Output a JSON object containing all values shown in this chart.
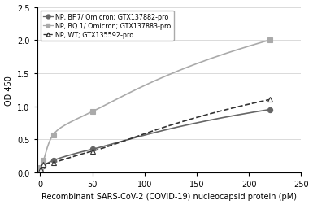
{
  "series": [
    {
      "label": "NP, BF.7/ Omicron; GTX137882-pro",
      "x": [
        0.78,
        3.125,
        12.5,
        50,
        220
      ],
      "y": [
        0.07,
        0.1,
        0.18,
        0.35,
        0.95
      ],
      "color": "#666666",
      "linestyle": "-",
      "marker": "o",
      "marker_face": "#666666",
      "marker_edge": "#666666",
      "linewidth": 1.2,
      "markersize": 4.5
    },
    {
      "label": "NP, BQ.1/ Omicron; GTX137883-pro",
      "x": [
        0.78,
        3.125,
        12.5,
        50,
        220
      ],
      "y": [
        0.07,
        0.18,
        0.57,
        0.92,
        2.0
      ],
      "color": "#aaaaaa",
      "linestyle": "-",
      "marker": "s",
      "marker_face": "#aaaaaa",
      "marker_edge": "#aaaaaa",
      "linewidth": 1.2,
      "markersize": 4.5
    },
    {
      "label": "NP, WT; GTX135592-pro",
      "x": [
        0.78,
        3.125,
        12.5,
        50,
        220
      ],
      "y": [
        0.05,
        0.12,
        0.15,
        0.32,
        1.1
      ],
      "color": "#333333",
      "linestyle": "--",
      "marker": "^",
      "marker_face": "white",
      "marker_edge": "#333333",
      "linewidth": 1.2,
      "markersize": 5
    }
  ],
  "xlabel": "Recombinant SARS-CoV-2 (COVID-19) nucleocapsid protein (pM)",
  "ylabel": "OD 450",
  "xlim": [
    -3,
    250
  ],
  "ylim": [
    0,
    2.5
  ],
  "xticks": [
    0,
    50,
    100,
    150,
    200,
    250
  ],
  "yticks": [
    0,
    0.5,
    1.0,
    1.5,
    2.0,
    2.5
  ],
  "figsize": [
    3.85,
    2.53
  ],
  "dpi": 100,
  "background_color": "#ffffff",
  "grid_color": "#cccccc",
  "label_fontsize": 7,
  "tick_fontsize": 7,
  "legend_fontsize": 5.8
}
